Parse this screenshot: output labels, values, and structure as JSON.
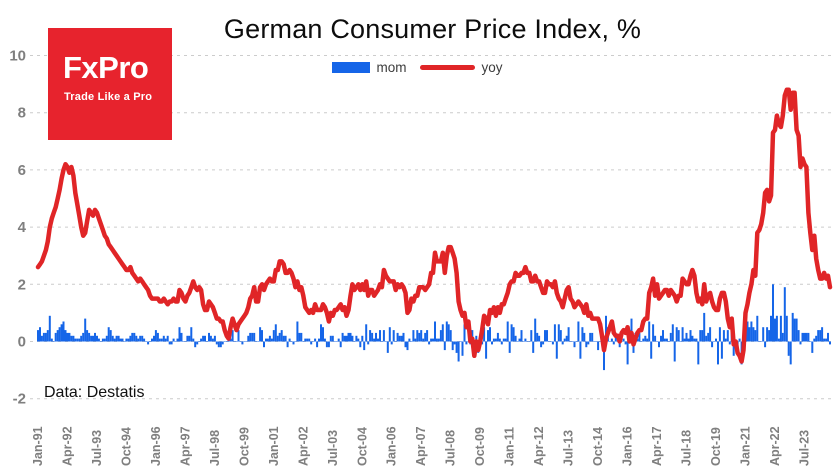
{
  "brand": {
    "name": "FxPro",
    "tagline": "Trade Like a Pro",
    "bg_color": "#e7232d"
  },
  "chart_data": {
    "type": "combo",
    "title": "German Consumer Price Index, %",
    "source": "Data: Destatis",
    "x_frequency": "monthly",
    "x_start": "1991-01",
    "x_end": "2024-08",
    "ylim": [
      -2,
      10.6
    ],
    "y_ticks": [
      -2,
      0,
      2,
      4,
      6,
      8,
      10
    ],
    "grid": "horizontal-dashed",
    "legend_position": "top-center",
    "x_tick_step": 15,
    "x_tick_labels": [
      "Jan-91",
      "Apr-92",
      "Jul-93",
      "Oct-94",
      "Jan-96",
      "Apr-97",
      "Jul-98",
      "Oct-99",
      "Jan-01",
      "Apr-02",
      "Jul-03",
      "Oct-04",
      "Jan-06",
      "Apr-07",
      "Jul-08",
      "Oct-09",
      "Jan-11",
      "Apr-12",
      "Jul-13",
      "Oct-14",
      "Jan-16",
      "Apr-17",
      "Jul-18",
      "Oct-19",
      "Jan-21",
      "Apr-22",
      "Jul-23"
    ],
    "series": [
      {
        "name": "mom",
        "type": "bar",
        "color": "#1565e8",
        "values": [
          0.4,
          0.5,
          0.2,
          0.3,
          0.3,
          0.4,
          0.9,
          0.1,
          0.0,
          0.3,
          0.4,
          0.5,
          0.6,
          0.7,
          0.4,
          0.3,
          0.3,
          0.2,
          0.2,
          0.1,
          0.1,
          0.1,
          0.2,
          0.3,
          0.8,
          0.4,
          0.3,
          0.2,
          0.2,
          0.3,
          0.2,
          0.1,
          0.0,
          0.1,
          0.1,
          0.2,
          0.5,
          0.4,
          0.2,
          0.1,
          0.2,
          0.2,
          0.1,
          0.1,
          0.0,
          0.1,
          0.1,
          0.2,
          0.3,
          0.3,
          0.2,
          0.1,
          0.2,
          0.2,
          0.1,
          0.0,
          -0.1,
          0.0,
          0.1,
          0.2,
          0.4,
          0.3,
          0.1,
          0.1,
          0.2,
          0.1,
          0.2,
          -0.1,
          -0.1,
          0.1,
          0.0,
          0.1,
          0.5,
          0.3,
          0.0,
          0.0,
          0.2,
          0.2,
          0.5,
          0.1,
          -0.2,
          -0.1,
          0.0,
          0.1,
          0.2,
          0.2,
          0.0,
          0.3,
          0.2,
          0.1,
          0.2,
          -0.1,
          -0.2,
          -0.2,
          -0.1,
          0.0,
          0.0,
          0.1,
          0.1,
          0.4,
          0.0,
          0.0,
          0.4,
          0.0,
          -0.1,
          0.0,
          0.0,
          0.2,
          0.3,
          0.3,
          0.3,
          0.0,
          0.0,
          0.5,
          0.4,
          -0.2,
          0.1,
          0.1,
          0.2,
          0.1,
          0.4,
          0.6,
          0.2,
          0.3,
          0.4,
          0.2,
          0.2,
          -0.2,
          0.1,
          0.0,
          -0.1,
          0.0,
          0.7,
          0.3,
          0.3,
          0.0,
          0.1,
          0.1,
          0.1,
          -0.1,
          0.0,
          0.1,
          -0.2,
          0.1,
          0.6,
          0.5,
          0.1,
          -0.2,
          -0.2,
          0.2,
          0.2,
          0.0,
          0.0,
          0.1,
          -0.2,
          0.3,
          0.2,
          0.2,
          0.3,
          0.3,
          0.2,
          0.0,
          0.2,
          0.1,
          -0.2,
          0.2,
          -0.3,
          0.6,
          -0.1,
          0.4,
          0.3,
          0.1,
          0.3,
          0.1,
          0.4,
          0.0,
          0.4,
          0.0,
          -0.4,
          0.5,
          -0.1,
          0.4,
          0.0,
          0.3,
          0.2,
          0.2,
          0.3,
          -0.2,
          -0.3,
          0.1,
          0.0,
          0.4,
          0.1,
          0.4,
          0.3,
          0.4,
          0.1,
          0.3,
          0.4,
          -0.1,
          0.1,
          0.1,
          0.7,
          0.1,
          0.1,
          0.4,
          0.6,
          -0.3,
          0.7,
          0.6,
          0.4,
          -0.3,
          -0.1,
          -0.4,
          -0.7,
          0.0,
          -0.5,
          0.6,
          -0.1,
          0.0,
          -0.1,
          0.4,
          0.0,
          0.2,
          -0.4,
          0.1,
          -0.1,
          0.5,
          -0.6,
          0.4,
          0.5,
          -0.1,
          0.1,
          0.1,
          0.3,
          0.1,
          -0.1,
          0.1,
          0.1,
          0.7,
          -0.4,
          0.6,
          0.5,
          0.2,
          0.0,
          0.1,
          0.4,
          0.0,
          0.1,
          0.0,
          0.0,
          0.4,
          -0.4,
          0.8,
          0.3,
          0.2,
          -0.2,
          -0.1,
          0.4,
          0.4,
          0.0,
          0.0,
          -0.1,
          0.6,
          -0.6,
          0.6,
          0.4,
          -0.1,
          0.1,
          0.2,
          0.5,
          0.0,
          0.0,
          -0.2,
          0.0,
          0.7,
          -0.6,
          0.5,
          0.3,
          -0.2,
          -0.1,
          0.3,
          0.3,
          0.0,
          0.0,
          -0.3,
          0.0,
          0.0,
          -1.0,
          0.9,
          0.5,
          0.0,
          0.1,
          -0.1,
          0.2,
          0.0,
          -0.2,
          0.0,
          0.1,
          -0.1,
          -0.8,
          0.4,
          0.8,
          -0.4,
          0.3,
          0.1,
          0.3,
          0.0,
          0.1,
          0.2,
          0.1,
          0.7,
          -0.6,
          0.6,
          0.2,
          0.0,
          -0.2,
          0.2,
          0.4,
          0.1,
          0.1,
          0.0,
          0.3,
          0.6,
          -0.7,
          0.5,
          0.4,
          0.0,
          0.5,
          0.1,
          0.3,
          0.1,
          0.4,
          0.2,
          0.1,
          0.1,
          -0.8,
          0.4,
          0.4,
          1.0,
          0.2,
          0.3,
          0.5,
          -0.2,
          0.0,
          0.1,
          -0.8,
          0.5,
          -0.6,
          0.4,
          0.1,
          0.4,
          -0.1,
          0.6,
          -0.5,
          -0.1,
          -0.2,
          0.1,
          -0.8,
          0.5,
          0.8,
          0.7,
          0.5,
          0.7,
          0.5,
          0.4,
          0.9,
          0.0,
          0.0,
          0.5,
          -0.2,
          0.5,
          0.4,
          0.9,
          2.0,
          0.8,
          0.9,
          0.1,
          0.9,
          0.3,
          1.9,
          0.9,
          -0.5,
          -0.8,
          1.0,
          0.8,
          0.8,
          0.4,
          -0.1,
          0.3,
          0.3,
          0.3,
          0.3,
          0.0,
          -0.4,
          0.1,
          0.2,
          0.4,
          0.4,
          0.5,
          0.1,
          0.1,
          0.3,
          -0.1
        ]
      },
      {
        "name": "yoy",
        "type": "line",
        "color": "#e02527",
        "values": [
          2.6,
          2.7,
          2.8,
          3.0,
          3.2,
          3.5,
          4.0,
          4.3,
          4.5,
          4.7,
          5.0,
          5.3,
          5.7,
          6.0,
          6.2,
          6.1,
          5.9,
          6.1,
          5.8,
          5.2,
          4.8,
          4.4,
          4.0,
          3.7,
          3.8,
          4.2,
          4.6,
          4.5,
          4.4,
          4.6,
          4.5,
          4.3,
          4.1,
          3.9,
          3.7,
          3.6,
          3.4,
          3.3,
          3.2,
          3.1,
          3.0,
          2.9,
          2.8,
          2.7,
          2.6,
          2.5,
          2.5,
          2.6,
          2.4,
          2.3,
          2.2,
          2.1,
          2.2,
          2.1,
          2.0,
          1.9,
          1.8,
          1.6,
          1.5,
          1.5,
          1.5,
          1.5,
          1.4,
          1.4,
          1.5,
          1.4,
          1.3,
          1.4,
          1.4,
          1.5,
          1.4,
          1.4,
          1.8,
          1.7,
          1.5,
          1.4,
          1.6,
          1.7,
          1.9,
          2.1,
          1.9,
          1.8,
          1.9,
          1.8,
          1.3,
          1.1,
          1.1,
          1.4,
          1.3,
          1.2,
          1.0,
          0.8,
          0.8,
          0.7,
          0.7,
          0.4,
          0.2,
          0.1,
          0.5,
          0.8,
          0.6,
          0.4,
          0.6,
          0.7,
          0.8,
          0.9,
          1.0,
          1.2,
          1.5,
          1.6,
          1.9,
          1.4,
          1.4,
          1.9,
          2.0,
          1.8,
          2.0,
          2.1,
          2.2,
          2.1,
          2.1,
          2.5,
          2.5,
          2.8,
          2.8,
          2.7,
          2.4,
          2.4,
          2.5,
          2.4,
          2.2,
          1.9,
          2.1,
          1.8,
          1.9,
          1.6,
          1.2,
          1.1,
          1.0,
          1.1,
          1.0,
          1.3,
          1.1,
          1.1,
          1.1,
          1.3,
          1.2,
          1.0,
          0.7,
          1.0,
          0.9,
          1.1,
          1.1,
          1.2,
          1.3,
          1.1,
          1.2,
          0.9,
          1.1,
          1.6,
          2.0,
          1.8,
          1.9,
          2.0,
          1.8,
          2.0,
          1.8,
          2.1,
          1.6,
          1.8,
          1.8,
          1.6,
          1.7,
          1.8,
          2.0,
          1.9,
          2.5,
          2.3,
          2.2,
          2.1,
          2.1,
          2.1,
          1.8,
          2.0,
          1.9,
          2.0,
          1.9,
          1.7,
          1.0,
          1.1,
          1.5,
          1.4,
          1.6,
          1.6,
          1.9,
          1.9,
          1.9,
          1.8,
          1.9,
          2.0,
          2.4,
          2.4,
          3.1,
          2.8,
          2.8,
          2.8,
          3.1,
          2.4,
          3.0,
          3.3,
          3.3,
          3.1,
          2.9,
          2.4,
          1.4,
          1.1,
          0.9,
          1.0,
          0.5,
          0.7,
          0.0,
          0.1,
          -0.5,
          0.0,
          -0.3,
          0.0,
          0.4,
          0.9,
          0.8,
          0.6,
          1.1,
          1.0,
          1.2,
          0.9,
          1.2,
          1.0,
          1.3,
          1.3,
          1.5,
          1.7,
          2.0,
          2.1,
          2.1,
          2.4,
          2.3,
          2.3,
          2.4,
          2.4,
          2.6,
          2.4,
          2.4,
          2.1,
          2.1,
          2.3,
          2.1,
          2.1,
          1.9,
          1.7,
          1.7,
          2.1,
          2.0,
          2.0,
          1.9,
          2.1,
          1.7,
          1.5,
          1.4,
          1.2,
          1.5,
          1.8,
          1.9,
          1.5,
          1.4,
          1.2,
          1.3,
          1.4,
          1.3,
          1.2,
          1.0,
          1.3,
          0.9,
          1.0,
          0.8,
          0.8,
          0.8,
          0.8,
          0.6,
          0.2,
          -0.3,
          0.1,
          0.3,
          0.5,
          0.7,
          0.3,
          0.2,
          0.2,
          0.0,
          0.3,
          0.4,
          0.3,
          0.5,
          0.0,
          0.3,
          -0.1,
          0.1,
          0.3,
          0.4,
          0.4,
          0.7,
          0.8,
          0.8,
          1.7,
          1.9,
          2.2,
          1.6,
          2.0,
          1.5,
          1.6,
          1.7,
          1.8,
          1.8,
          1.6,
          1.8,
          1.7,
          1.6,
          1.4,
          1.6,
          1.6,
          2.2,
          2.1,
          2.0,
          2.0,
          2.3,
          2.5,
          2.3,
          1.7,
          1.4,
          1.5,
          1.3,
          2.0,
          1.4,
          1.6,
          1.7,
          1.4,
          1.2,
          1.1,
          1.1,
          1.5,
          1.7,
          1.7,
          1.4,
          0.8,
          0.5,
          0.8,
          -0.1,
          0.0,
          -0.4,
          -0.5,
          -0.7,
          -0.3,
          1.0,
          1.3,
          1.7,
          2.0,
          2.5,
          2.3,
          3.8,
          3.9,
          4.1,
          4.5,
          5.2,
          5.3,
          4.9,
          5.1,
          7.3,
          7.4,
          7.9,
          7.6,
          7.5,
          7.9,
          8.6,
          8.8,
          8.8,
          8.1,
          8.7,
          8.7,
          7.4,
          7.2,
          6.1,
          6.4,
          6.2,
          6.1,
          4.5,
          3.8,
          3.2,
          3.7,
          2.9,
          2.5,
          2.2,
          2.2,
          2.4,
          2.2,
          2.3,
          1.9
        ]
      }
    ]
  }
}
